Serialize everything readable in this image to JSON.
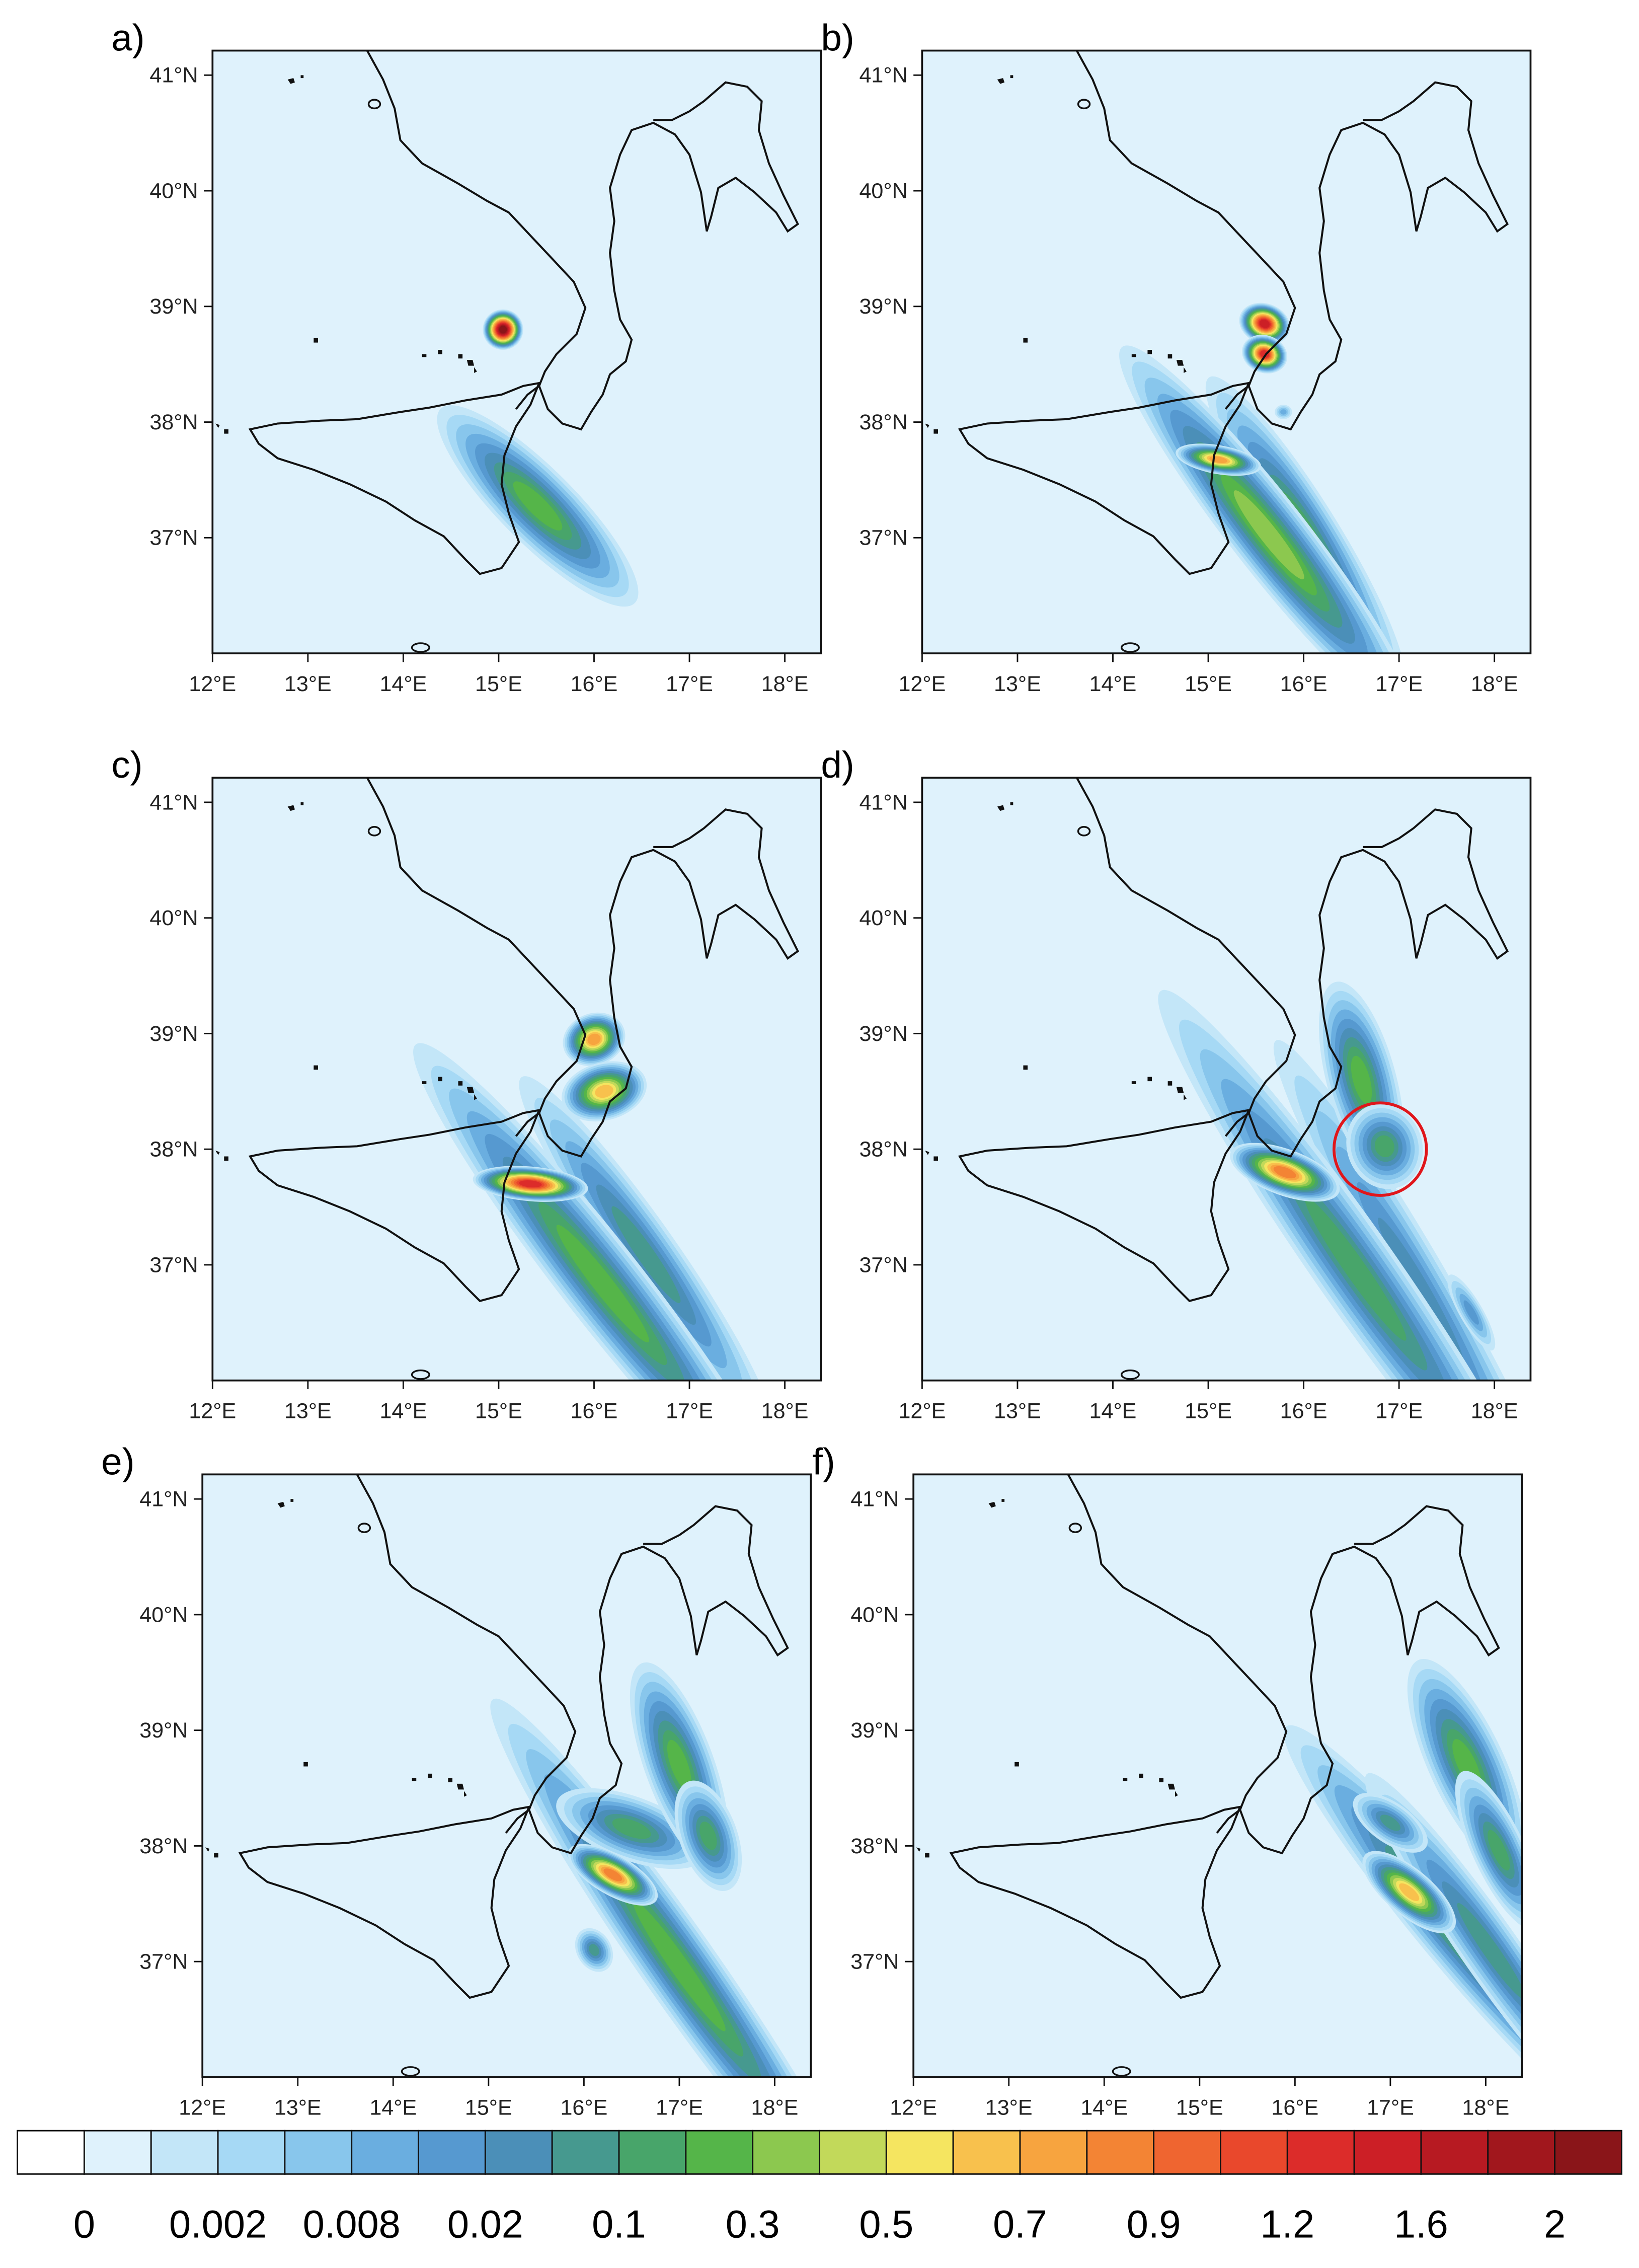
{
  "panels": [
    {
      "label": "a)"
    },
    {
      "label": "b)"
    },
    {
      "label": "c)"
    },
    {
      "label": "d)"
    },
    {
      "label": "e)"
    },
    {
      "label": "f)"
    }
  ],
  "axes": {
    "lat_labels": [
      "41°N",
      "40°N",
      "39°N",
      "38°N",
      "37°N"
    ],
    "lon_labels": [
      "12°E",
      "13°E",
      "14°E",
      "15°E",
      "16°E",
      "17°E",
      "18°E"
    ]
  },
  "colorbar": {
    "colors": [
      "#ffffff",
      "#dff2fc",
      "#c3e6f8",
      "#a6d9f5",
      "#88c6ec",
      "#6aaee0",
      "#5699d0",
      "#4b8fb8",
      "#46998f",
      "#48a56a",
      "#55b549",
      "#8cc84f",
      "#c2d95a",
      "#f5e560",
      "#f8c14d",
      "#f7a43f",
      "#f38434",
      "#ef6530",
      "#e9482c",
      "#dc2c2a",
      "#cc1f26",
      "#b71a22",
      "#a1171d",
      "#8a1519"
    ],
    "labels": [
      "0",
      "0.002",
      "0.008",
      "0.02",
      "0.1",
      "0.3",
      "0.5",
      "0.7",
      "0.9",
      "1.2",
      "1.6",
      "2"
    ]
  }
}
